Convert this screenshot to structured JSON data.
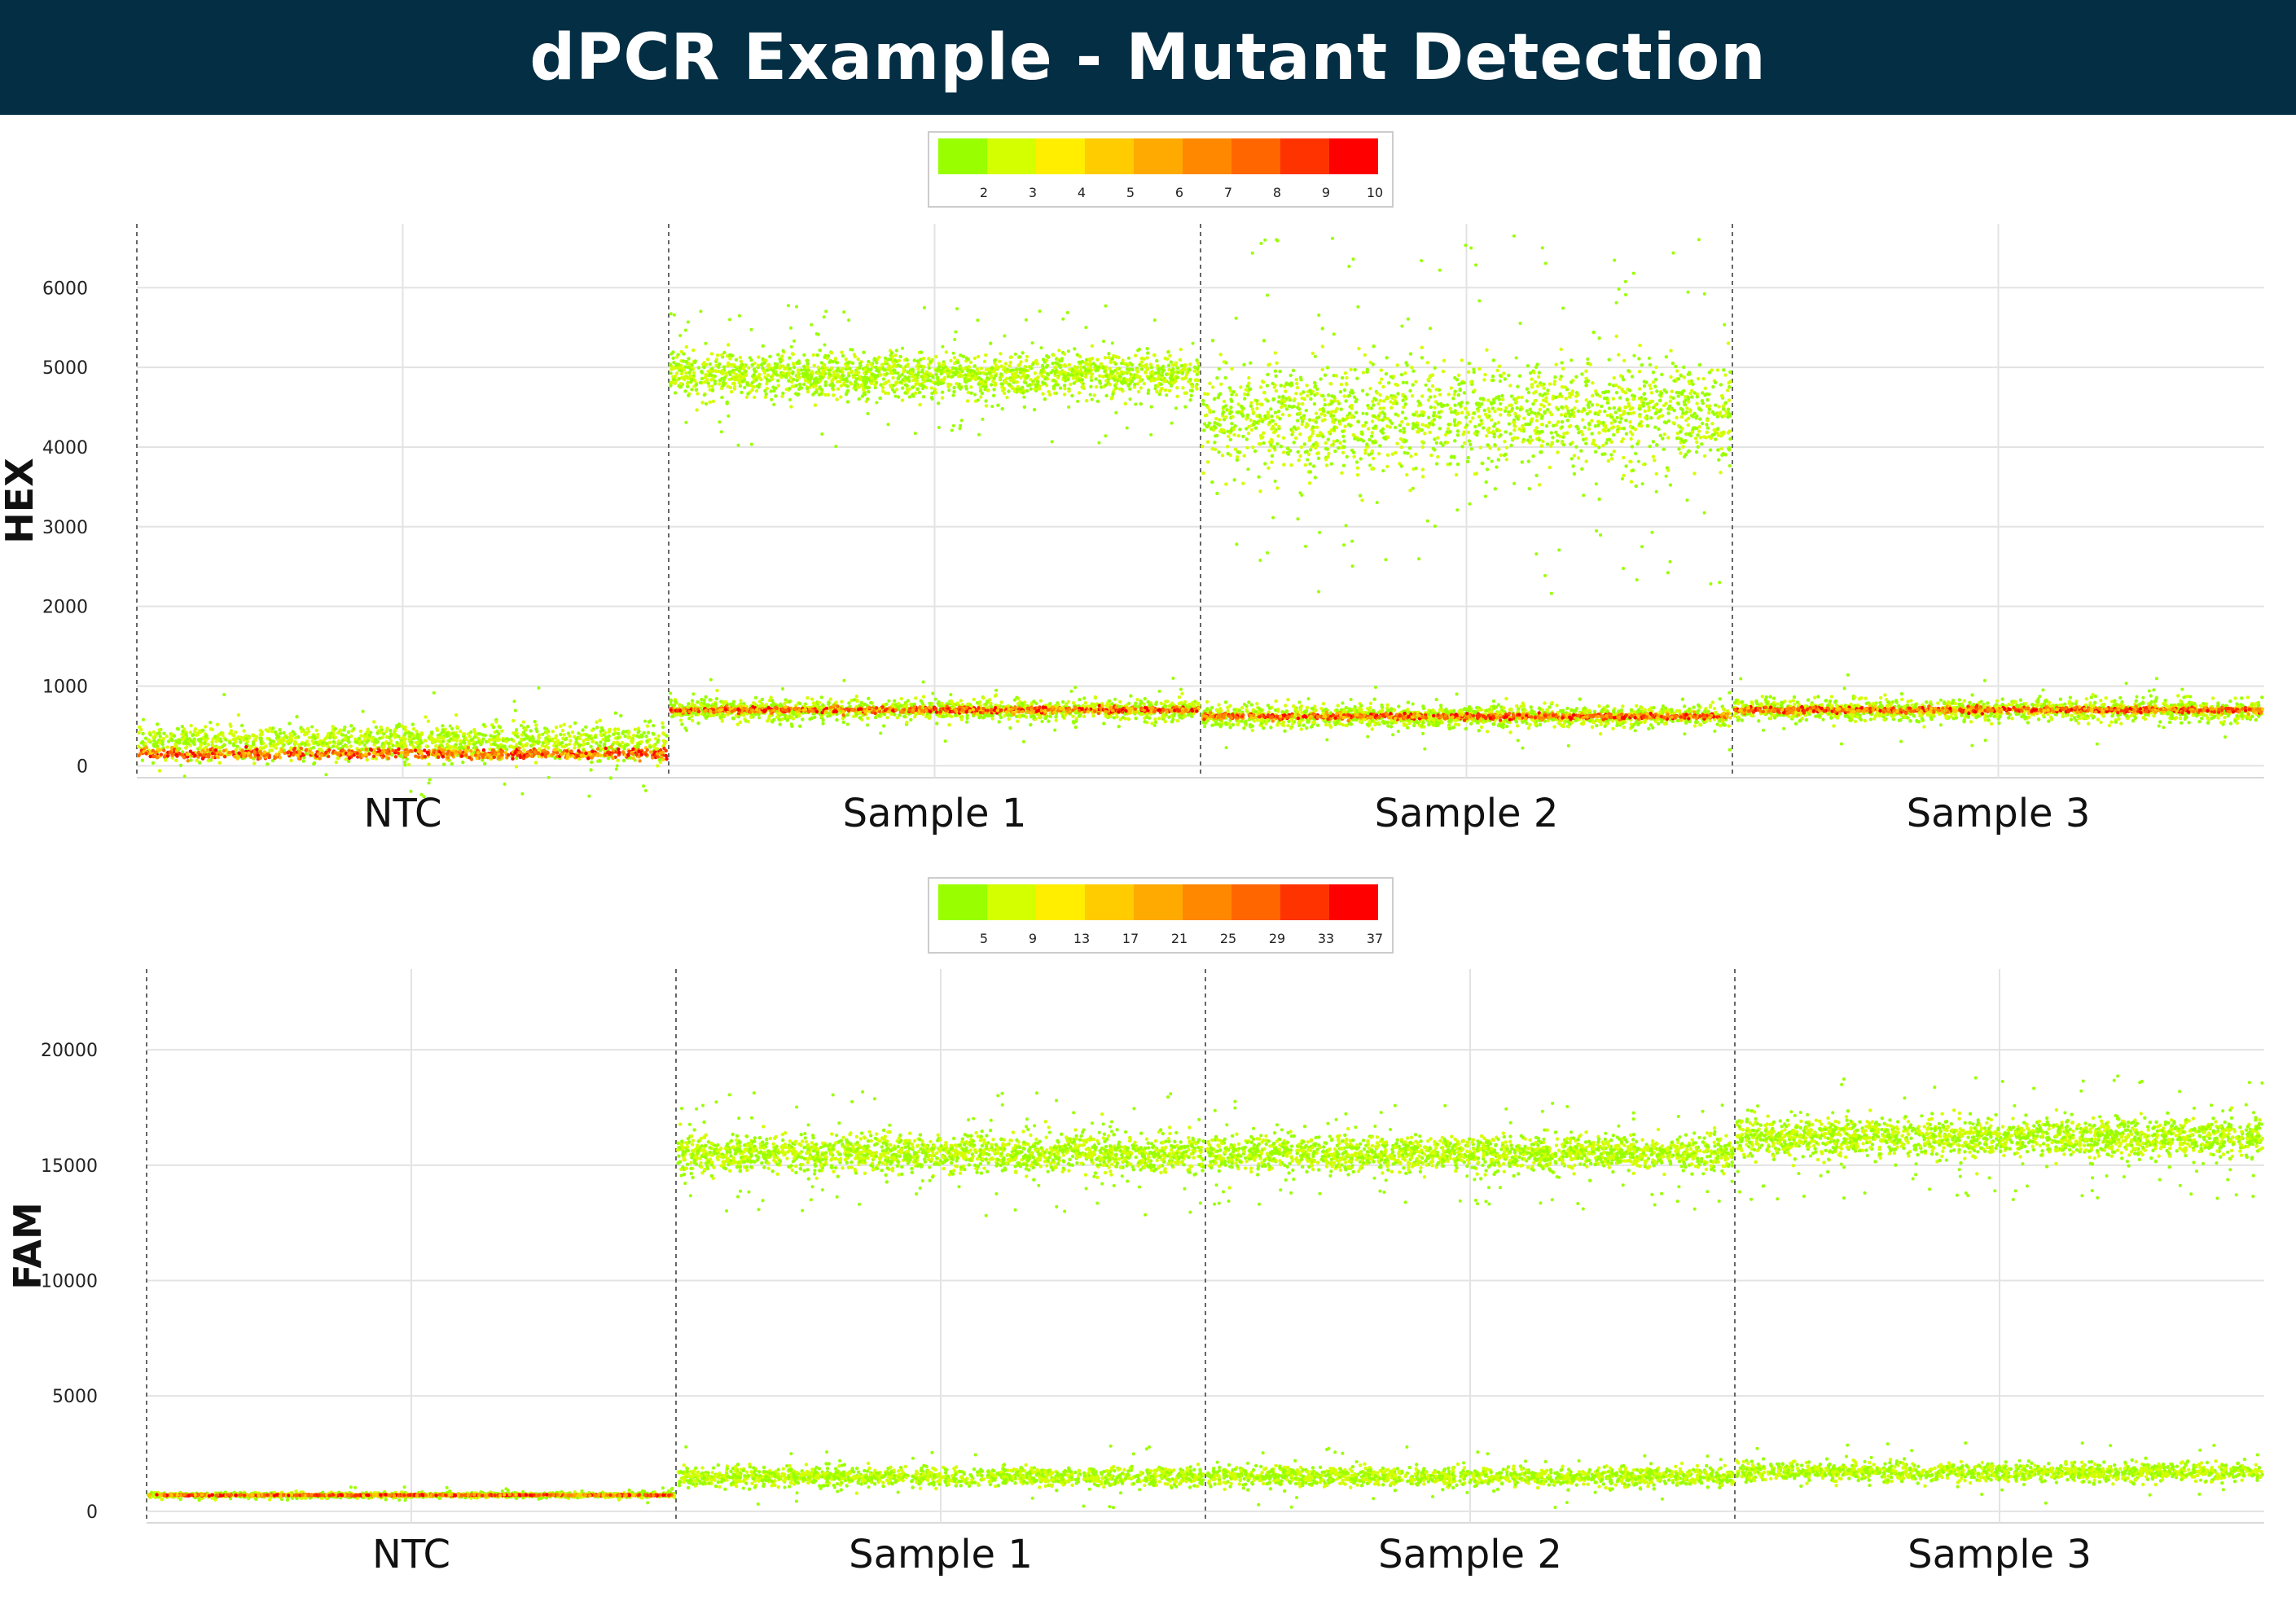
{
  "title": "dPCR Example - Mutant Detection",
  "colors": {
    "title_bg": "#032e43",
    "scale": [
      "#99ff00",
      "#d4ff00",
      "#ffee00",
      "#ffcc00",
      "#ffaa00",
      "#ff8800",
      "#ff6600",
      "#ff3300",
      "#ff0000"
    ]
  },
  "chart_data": [
    {
      "type": "scatter",
      "ylabel": "HEX",
      "yticks": [
        0,
        1000,
        2000,
        3000,
        4000,
        5000,
        6000
      ],
      "ylim": [
        -150,
        6800
      ],
      "categories": [
        "NTC",
        "Sample 1",
        "Sample 2",
        "Sample 3"
      ],
      "colorbar_ticks": [
        "2",
        "3",
        "4",
        "5",
        "6",
        "7",
        "8",
        "9",
        "10"
      ],
      "grid": true,
      "clusters": [
        {
          "category": "NTC",
          "cluster": "negative",
          "center": 300,
          "spread": 250,
          "core": 150
        },
        {
          "category": "Sample 1",
          "cluster": "negative",
          "center": 700,
          "spread": 150,
          "core": 700
        },
        {
          "category": "Sample 1",
          "cluster": "positive",
          "center": 4900,
          "spread": 300
        },
        {
          "category": "Sample 2",
          "cluster": "negative",
          "center": 620,
          "spread": 150,
          "core": 620
        },
        {
          "category": "Sample 2",
          "cluster": "positive",
          "center": 4400,
          "spread": 750
        },
        {
          "category": "Sample 3",
          "cluster": "negative",
          "center": 700,
          "spread": 150,
          "core": 700
        }
      ]
    },
    {
      "type": "scatter",
      "ylabel": "FAM",
      "yticks": [
        0,
        5000,
        10000,
        15000,
        20000
      ],
      "ylim": [
        -500,
        23500
      ],
      "categories": [
        "NTC",
        "Sample 1",
        "Sample 2",
        "Sample 3"
      ],
      "colorbar_ticks": [
        "5",
        "9",
        "13",
        "17",
        "21",
        "25",
        "29",
        "33",
        "37"
      ],
      "grid": true,
      "clusters": [
        {
          "category": "NTC",
          "cluster": "negative",
          "center": 700,
          "spread": 120,
          "core": 700
        },
        {
          "category": "Sample 1",
          "cluster": "negative",
          "center": 1500,
          "spread": 450
        },
        {
          "category": "Sample 1",
          "cluster": "positive",
          "center": 15500,
          "spread": 900
        },
        {
          "category": "Sample 2",
          "cluster": "negative",
          "center": 1500,
          "spread": 450
        },
        {
          "category": "Sample 2",
          "cluster": "positive",
          "center": 15500,
          "spread": 800
        },
        {
          "category": "Sample 3",
          "cluster": "negative",
          "center": 1700,
          "spread": 450
        },
        {
          "category": "Sample 3",
          "cluster": "positive",
          "center": 16200,
          "spread": 900
        }
      ]
    }
  ]
}
